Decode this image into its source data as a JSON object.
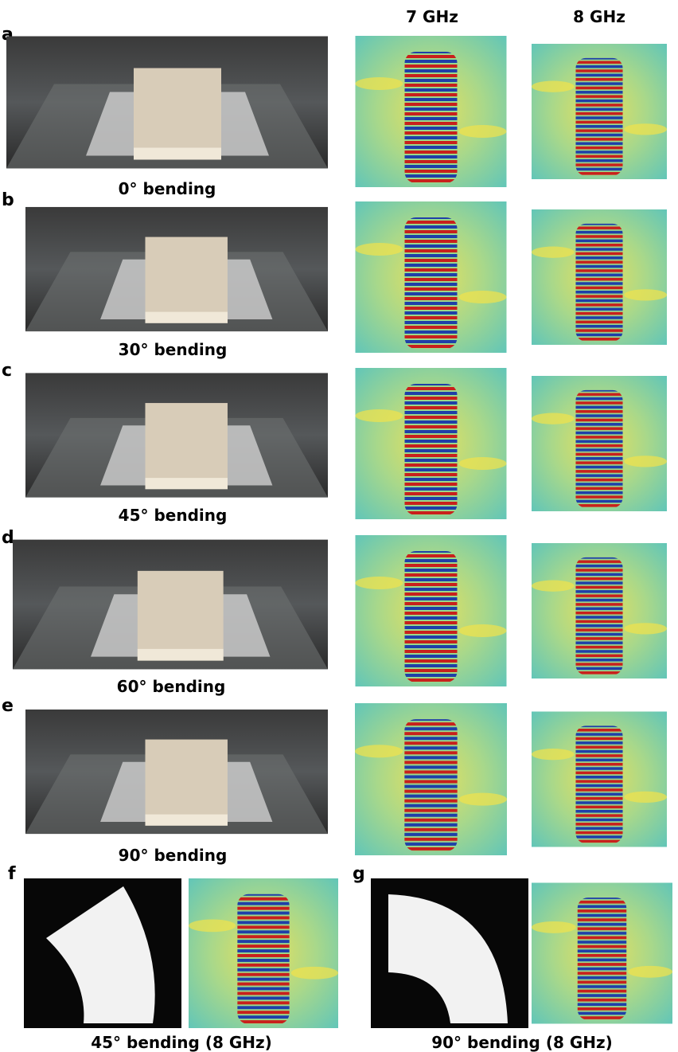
{
  "column_headers": [
    "7 GHz",
    "8 GHz"
  ],
  "rows": [
    {
      "label": "a",
      "caption": "0° bending"
    },
    {
      "label": "b",
      "caption": "30°  bending"
    },
    {
      "label": "c",
      "caption": "45° bending"
    },
    {
      "label": "d",
      "caption": "60° bending"
    },
    {
      "label": "e",
      "caption": "90° bending"
    }
  ],
  "bottom_panels": [
    {
      "label": "f",
      "caption": "45° bending (8 GHz)"
    },
    {
      "label": "g",
      "caption": "90° bending (8 GHz)"
    }
  ]
}
